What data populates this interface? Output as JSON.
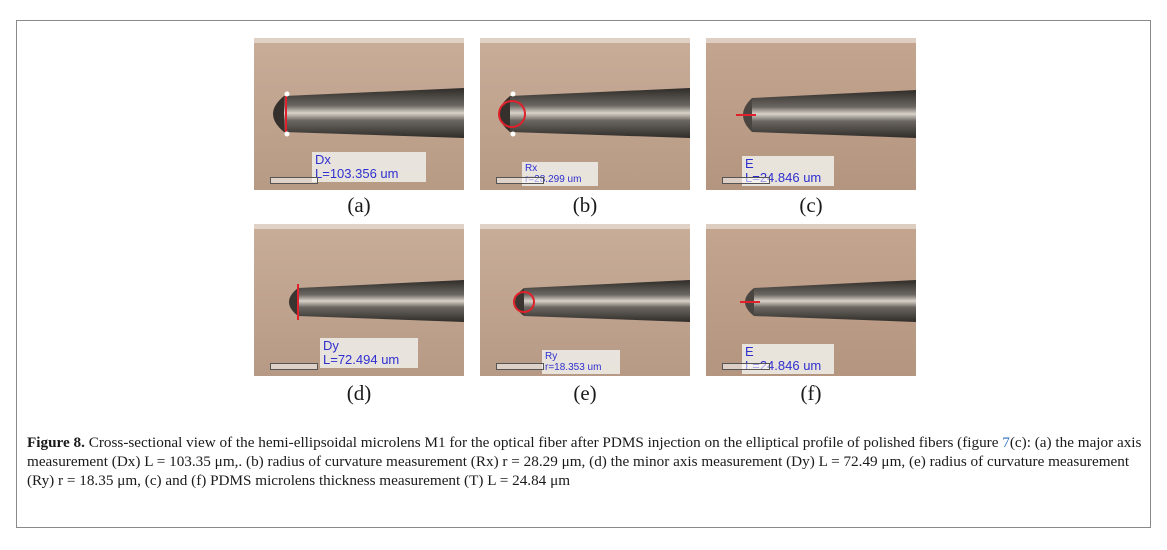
{
  "panels": [
    {
      "id": "a",
      "label": "(a)",
      "name": "Dx",
      "value": "L=103.356 um"
    },
    {
      "id": "b",
      "label": "(b)",
      "name": "Rx",
      "value": "r=28.299 um"
    },
    {
      "id": "c",
      "label": "(c)",
      "name": "E",
      "value": "L=24.846 um"
    },
    {
      "id": "d",
      "label": "(d)",
      "name": "Dy",
      "value": "L=72.494 um"
    },
    {
      "id": "e",
      "label": "(e)",
      "name": "Ry",
      "value": "r=18.353 um"
    },
    {
      "id": "f",
      "label": "(f)",
      "name": "E",
      "value": "L=24.846 um"
    }
  ],
  "caption": {
    "label": "Figure 8.",
    "text_before": " Cross-sectional view of the hemi-ellipsoidal microlens M1 for the optical fiber after PDMS injection on the elliptical profile of polished fibers (figure ",
    "ref": "7",
    "text_after": "(c): (a) the major axis measurement (Dx) L = 103.35 μm,. (b) radius of curvature measurement (Rx) r = 28.29 μm, (d) the minor axis measurement (Dy) L = 72.49 μm, (e) radius of curvature measurement (Ry) r = 18.35 μm, (c) and (f) PDMS microlens thickness measurement (T) L = 24.84 μm"
  },
  "colors": {
    "background_top": "#c8ab95",
    "background_bottom": "#b89983",
    "fiber": "#4d4a46",
    "overlay_text": "#2f2fd0",
    "measure_line": "#e0202a"
  }
}
